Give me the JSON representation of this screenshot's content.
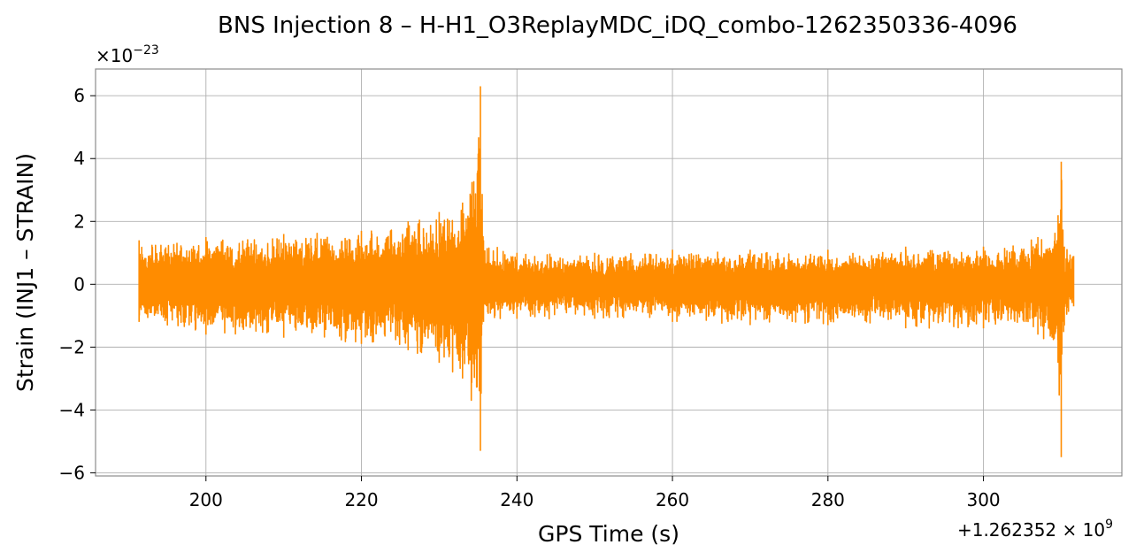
{
  "chart_data": {
    "type": "line",
    "title": "BNS Injection 8 – H-H1_O3ReplayMDC_iDQ_combo-1262350336-4096",
    "xlabel": "GPS Time (s)",
    "ylabel": "Strain (INJ1 – STRAIN)",
    "x_offset_label": "+1.262352 × 10",
    "x_offset_exponent": "9",
    "y_multiplier_label": "×10",
    "y_multiplier_exponent": "−23",
    "xlim": [
      185.8,
      317.8
    ],
    "ylim": [
      -6.1,
      6.85
    ],
    "x_ticks": [
      200,
      220,
      240,
      260,
      280,
      300
    ],
    "x_tick_labels": [
      "200",
      "220",
      "240",
      "260",
      "280",
      "300"
    ],
    "y_ticks": [
      -6,
      -4,
      -2,
      0,
      2,
      4,
      6
    ],
    "y_tick_labels": [
      "−6",
      "−4",
      "−2",
      "0",
      "2",
      "4",
      "6"
    ],
    "grid": true,
    "series": [
      {
        "color": "#ff8c00",
        "x_start": 191.4,
        "x_end": 311.6,
        "envelope": [
          {
            "x": 191.4,
            "upper": 1.4,
            "lower": -1.2
          },
          {
            "x": 200,
            "upper": 1.5,
            "lower": -1.6
          },
          {
            "x": 210,
            "upper": 1.6,
            "lower": -1.7
          },
          {
            "x": 220,
            "upper": 1.7,
            "lower": -1.9
          },
          {
            "x": 226,
            "upper": 2.0,
            "lower": -2.1
          },
          {
            "x": 230,
            "upper": 2.3,
            "lower": -2.5
          },
          {
            "x": 233,
            "upper": 2.6,
            "lower": -3.0
          },
          {
            "x": 235.3,
            "upper": 6.3,
            "lower": -5.3
          },
          {
            "x": 235.7,
            "upper": 1.4,
            "lower": -1.2
          },
          {
            "x": 240,
            "upper": 1.0,
            "lower": -1.1
          },
          {
            "x": 250,
            "upper": 1.0,
            "lower": -1.1
          },
          {
            "x": 260,
            "upper": 1.1,
            "lower": -1.2
          },
          {
            "x": 270,
            "upper": 1.1,
            "lower": -1.3
          },
          {
            "x": 280,
            "upper": 1.1,
            "lower": -1.3
          },
          {
            "x": 290,
            "upper": 1.2,
            "lower": -1.4
          },
          {
            "x": 300,
            "upper": 1.2,
            "lower": -1.4
          },
          {
            "x": 307,
            "upper": 1.5,
            "lower": -1.6
          },
          {
            "x": 309.6,
            "upper": 2.2,
            "lower": -2.5
          },
          {
            "x": 310.0,
            "upper": 3.9,
            "lower": -5.5
          },
          {
            "x": 310.4,
            "upper": 1.2,
            "lower": -1.3
          },
          {
            "x": 311.6,
            "upper": 0.9,
            "lower": -0.7
          }
        ]
      }
    ]
  }
}
